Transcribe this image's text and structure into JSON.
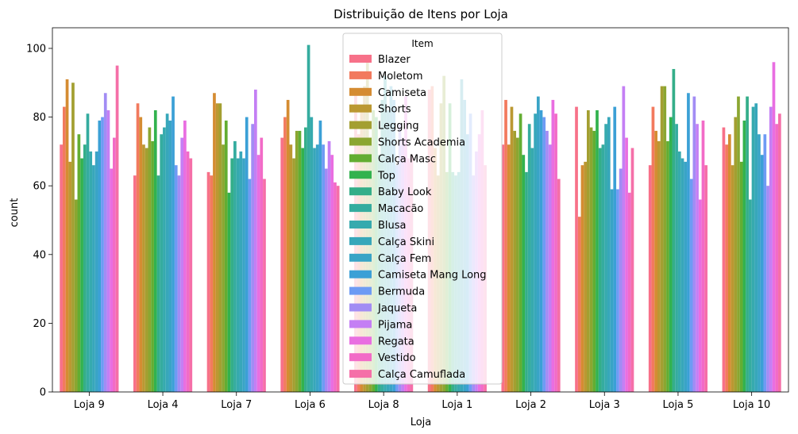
{
  "chart_data": {
    "type": "bar",
    "title": "Distribuição de Itens por Loja",
    "xlabel": "Loja",
    "ylabel": "count",
    "ylim": [
      0,
      106
    ],
    "yticks": [
      0,
      20,
      40,
      60,
      80,
      100
    ],
    "legend_title": "Item",
    "legend_position": "upper-center",
    "categories": [
      "Loja 9",
      "Loja 4",
      "Loja 7",
      "Loja 6",
      "Loja 8",
      "Loja 1",
      "Loja 2",
      "Loja 3",
      "Loja 5",
      "Loja 10"
    ],
    "series": [
      {
        "name": "Blazer",
        "color": "#f77189",
        "values": [
          72,
          63,
          64,
          74,
          88,
          88,
          72,
          83,
          66,
          77
        ]
      },
      {
        "name": "Moletom",
        "color": "#f27a5e",
        "values": [
          83,
          84,
          63,
          80,
          75,
          89,
          85,
          51,
          83,
          72
        ]
      },
      {
        "name": "Camiseta",
        "color": "#d58c32",
        "values": [
          91,
          80,
          87,
          85,
          83,
          71,
          72,
          66,
          76,
          75
        ]
      },
      {
        "name": "Shorts",
        "color": "#bb9832",
        "values": [
          67,
          72,
          84,
          72,
          89,
          63,
          83,
          67,
          73,
          66
        ]
      },
      {
        "name": "Legging",
        "color": "#a39f31",
        "values": [
          90,
          71,
          84,
          68,
          96,
          84,
          76,
          82,
          89,
          80
        ]
      },
      {
        "name": "Shorts Academia",
        "color": "#8ba631",
        "values": [
          56,
          77,
          72,
          76,
          72,
          92,
          74,
          77,
          89,
          86
        ]
      },
      {
        "name": "Calça Masc",
        "color": "#63ad32",
        "values": [
          75,
          73,
          79,
          76,
          82,
          64,
          81,
          76,
          73,
          67
        ]
      },
      {
        "name": "Top",
        "color": "#32b24e",
        "values": [
          68,
          82,
          58,
          71,
          80,
          84,
          69,
          82,
          80,
          79
        ]
      },
      {
        "name": "Baby Look",
        "color": "#34ae89",
        "values": [
          72,
          63,
          68,
          77,
          69,
          64,
          64,
          71,
          94,
          86
        ]
      },
      {
        "name": "Macacão",
        "color": "#35ac9f",
        "values": [
          81,
          75,
          73,
          101,
          85,
          63,
          78,
          72,
          78,
          56
        ]
      },
      {
        "name": "Blusa",
        "color": "#36aaae",
        "values": [
          70,
          77,
          68,
          80,
          92,
          64,
          71,
          78,
          70,
          83
        ]
      },
      {
        "name": "Calça Skini",
        "color": "#37a7ba",
        "values": [
          66,
          81,
          70,
          71,
          82,
          91,
          81,
          80,
          68,
          84
        ]
      },
      {
        "name": "Calça Fem",
        "color": "#39a4c6",
        "values": [
          70,
          79,
          68,
          72,
          89,
          85,
          86,
          59,
          67,
          75
        ]
      },
      {
        "name": "Camiseta Mang Long",
        "color": "#3ba0d6",
        "values": [
          79,
          86,
          80,
          79,
          85,
          75,
          82,
          83,
          87,
          69
        ]
      },
      {
        "name": "Bermuda",
        "color": "#6e9bf4",
        "values": [
          80,
          66,
          62,
          72,
          66,
          81,
          80,
          59,
          62,
          75
        ]
      },
      {
        "name": "Jaqueta",
        "color": "#a28cf4",
        "values": [
          87,
          63,
          78,
          65,
          78,
          63,
          76,
          65,
          86,
          60
        ]
      },
      {
        "name": "Pijama",
        "color": "#c47ff4",
        "values": [
          82,
          74,
          88,
          73,
          74,
          70,
          72,
          89,
          78,
          83
        ]
      },
      {
        "name": "Regata",
        "color": "#e96ee1",
        "values": [
          65,
          79,
          69,
          69,
          86,
          75,
          85,
          74,
          56,
          96
        ]
      },
      {
        "name": "Vestido",
        "color": "#f26bc7",
        "values": [
          74,
          70,
          74,
          61,
          68,
          82,
          81,
          58,
          79,
          78
        ]
      },
      {
        "name": "Calça Camuflada",
        "color": "#f56fa8",
        "values": [
          95,
          68,
          62,
          60,
          69,
          66,
          62,
          71,
          66,
          81
        ]
      }
    ]
  }
}
